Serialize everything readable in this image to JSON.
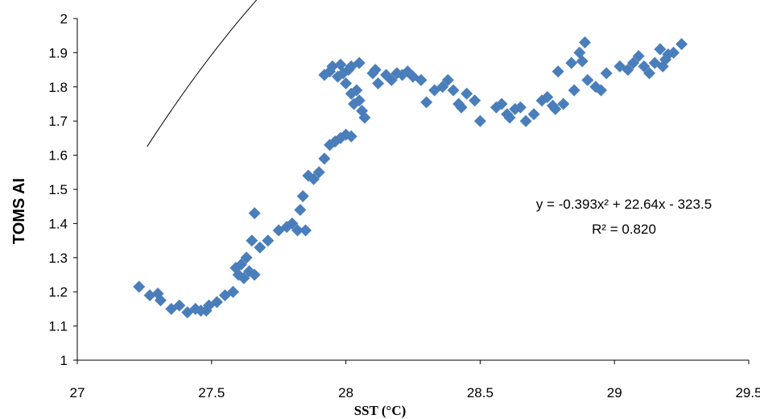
{
  "chart_data": {
    "type": "scatter",
    "xlabel": "SST (°C)",
    "ylabel": "TOMS AI",
    "xlim": [
      27,
      29.5
    ],
    "ylim": [
      1,
      2
    ],
    "x_ticks": [
      "27",
      "27.5",
      "28",
      "28.5",
      "29",
      "29.5"
    ],
    "y_ticks": [
      "1",
      "1.1",
      "1.2",
      "1.3",
      "1.4",
      "1.5",
      "1.6",
      "1.7",
      "1.8",
      "1.9",
      "2"
    ],
    "grid": false,
    "marker_color": "#4a7ebb",
    "trendline": {
      "kind": "polynomial-2",
      "coefficients": [
        -0.393,
        22.64,
        -323.5
      ],
      "x_range": [
        27.26,
        29.25
      ],
      "color": "#000000",
      "equation_text": "y = -0.393x² + 22.64x - 323.5",
      "r2_text": "R² = 0.820"
    },
    "series": [
      {
        "points": [
          [
            27.23,
            1.215
          ],
          [
            27.27,
            1.19
          ],
          [
            27.3,
            1.195
          ],
          [
            27.31,
            1.175
          ],
          [
            27.35,
            1.15
          ],
          [
            27.38,
            1.16
          ],
          [
            27.41,
            1.14
          ],
          [
            27.44,
            1.15
          ],
          [
            27.46,
            1.145
          ],
          [
            27.48,
            1.145
          ],
          [
            27.49,
            1.16
          ],
          [
            27.52,
            1.17
          ],
          [
            27.55,
            1.19
          ],
          [
            27.58,
            1.2
          ],
          [
            27.59,
            1.27
          ],
          [
            27.6,
            1.25
          ],
          [
            27.61,
            1.28
          ],
          [
            27.62,
            1.24
          ],
          [
            27.63,
            1.3
          ],
          [
            27.64,
            1.26
          ],
          [
            27.65,
            1.35
          ],
          [
            27.66,
            1.25
          ],
          [
            27.66,
            1.43
          ],
          [
            27.68,
            1.33
          ],
          [
            27.71,
            1.35
          ],
          [
            27.75,
            1.38
          ],
          [
            27.78,
            1.39
          ],
          [
            27.8,
            1.4
          ],
          [
            27.82,
            1.38
          ],
          [
            27.83,
            1.44
          ],
          [
            27.84,
            1.48
          ],
          [
            27.85,
            1.38
          ],
          [
            27.86,
            1.54
          ],
          [
            27.88,
            1.53
          ],
          [
            27.9,
            1.55
          ],
          [
            27.92,
            1.59
          ],
          [
            27.94,
            1.63
          ],
          [
            27.96,
            1.64
          ],
          [
            27.98,
            1.65
          ],
          [
            28.0,
            1.66
          ],
          [
            28.02,
            1.655
          ],
          [
            27.92,
            1.835
          ],
          [
            27.94,
            1.845
          ],
          [
            27.95,
            1.86
          ],
          [
            27.97,
            1.83
          ],
          [
            27.98,
            1.865
          ],
          [
            27.99,
            1.84
          ],
          [
            28.0,
            1.81
          ],
          [
            28.01,
            1.85
          ],
          [
            28.02,
            1.86
          ],
          [
            28.02,
            1.78
          ],
          [
            28.03,
            1.75
          ],
          [
            28.04,
            1.79
          ],
          [
            28.05,
            1.76
          ],
          [
            28.06,
            1.73
          ],
          [
            28.05,
            1.87
          ],
          [
            28.07,
            1.71
          ],
          [
            28.1,
            1.84
          ],
          [
            28.11,
            1.85
          ],
          [
            28.12,
            1.81
          ],
          [
            28.15,
            1.835
          ],
          [
            28.17,
            1.82
          ],
          [
            28.19,
            1.84
          ],
          [
            28.21,
            1.835
          ],
          [
            28.23,
            1.845
          ],
          [
            28.25,
            1.83
          ],
          [
            28.28,
            1.82
          ],
          [
            28.3,
            1.755
          ],
          [
            28.33,
            1.79
          ],
          [
            28.36,
            1.8
          ],
          [
            28.38,
            1.82
          ],
          [
            28.4,
            1.79
          ],
          [
            28.42,
            1.75
          ],
          [
            28.43,
            1.74
          ],
          [
            28.45,
            1.78
          ],
          [
            28.48,
            1.76
          ],
          [
            28.5,
            1.7
          ],
          [
            28.56,
            1.74
          ],
          [
            28.58,
            1.75
          ],
          [
            28.6,
            1.72
          ],
          [
            28.61,
            1.71
          ],
          [
            28.63,
            1.735
          ],
          [
            28.65,
            1.74
          ],
          [
            28.67,
            1.7
          ],
          [
            28.7,
            1.72
          ],
          [
            28.73,
            1.76
          ],
          [
            28.75,
            1.77
          ],
          [
            28.77,
            1.745
          ],
          [
            28.78,
            1.735
          ],
          [
            28.79,
            1.845
          ],
          [
            28.81,
            1.75
          ],
          [
            28.84,
            1.87
          ],
          [
            28.85,
            1.79
          ],
          [
            28.87,
            1.9
          ],
          [
            28.88,
            1.875
          ],
          [
            28.89,
            1.93
          ],
          [
            28.9,
            1.82
          ],
          [
            28.93,
            1.8
          ],
          [
            28.95,
            1.79
          ],
          [
            28.97,
            1.84
          ],
          [
            29.02,
            1.86
          ],
          [
            29.05,
            1.85
          ],
          [
            29.07,
            1.87
          ],
          [
            29.09,
            1.89
          ],
          [
            29.11,
            1.86
          ],
          [
            29.13,
            1.84
          ],
          [
            29.15,
            1.87
          ],
          [
            29.17,
            1.91
          ],
          [
            29.18,
            1.86
          ],
          [
            29.19,
            1.88
          ],
          [
            29.2,
            1.895
          ],
          [
            29.22,
            1.9
          ],
          [
            29.25,
            1.925
          ]
        ]
      }
    ]
  }
}
